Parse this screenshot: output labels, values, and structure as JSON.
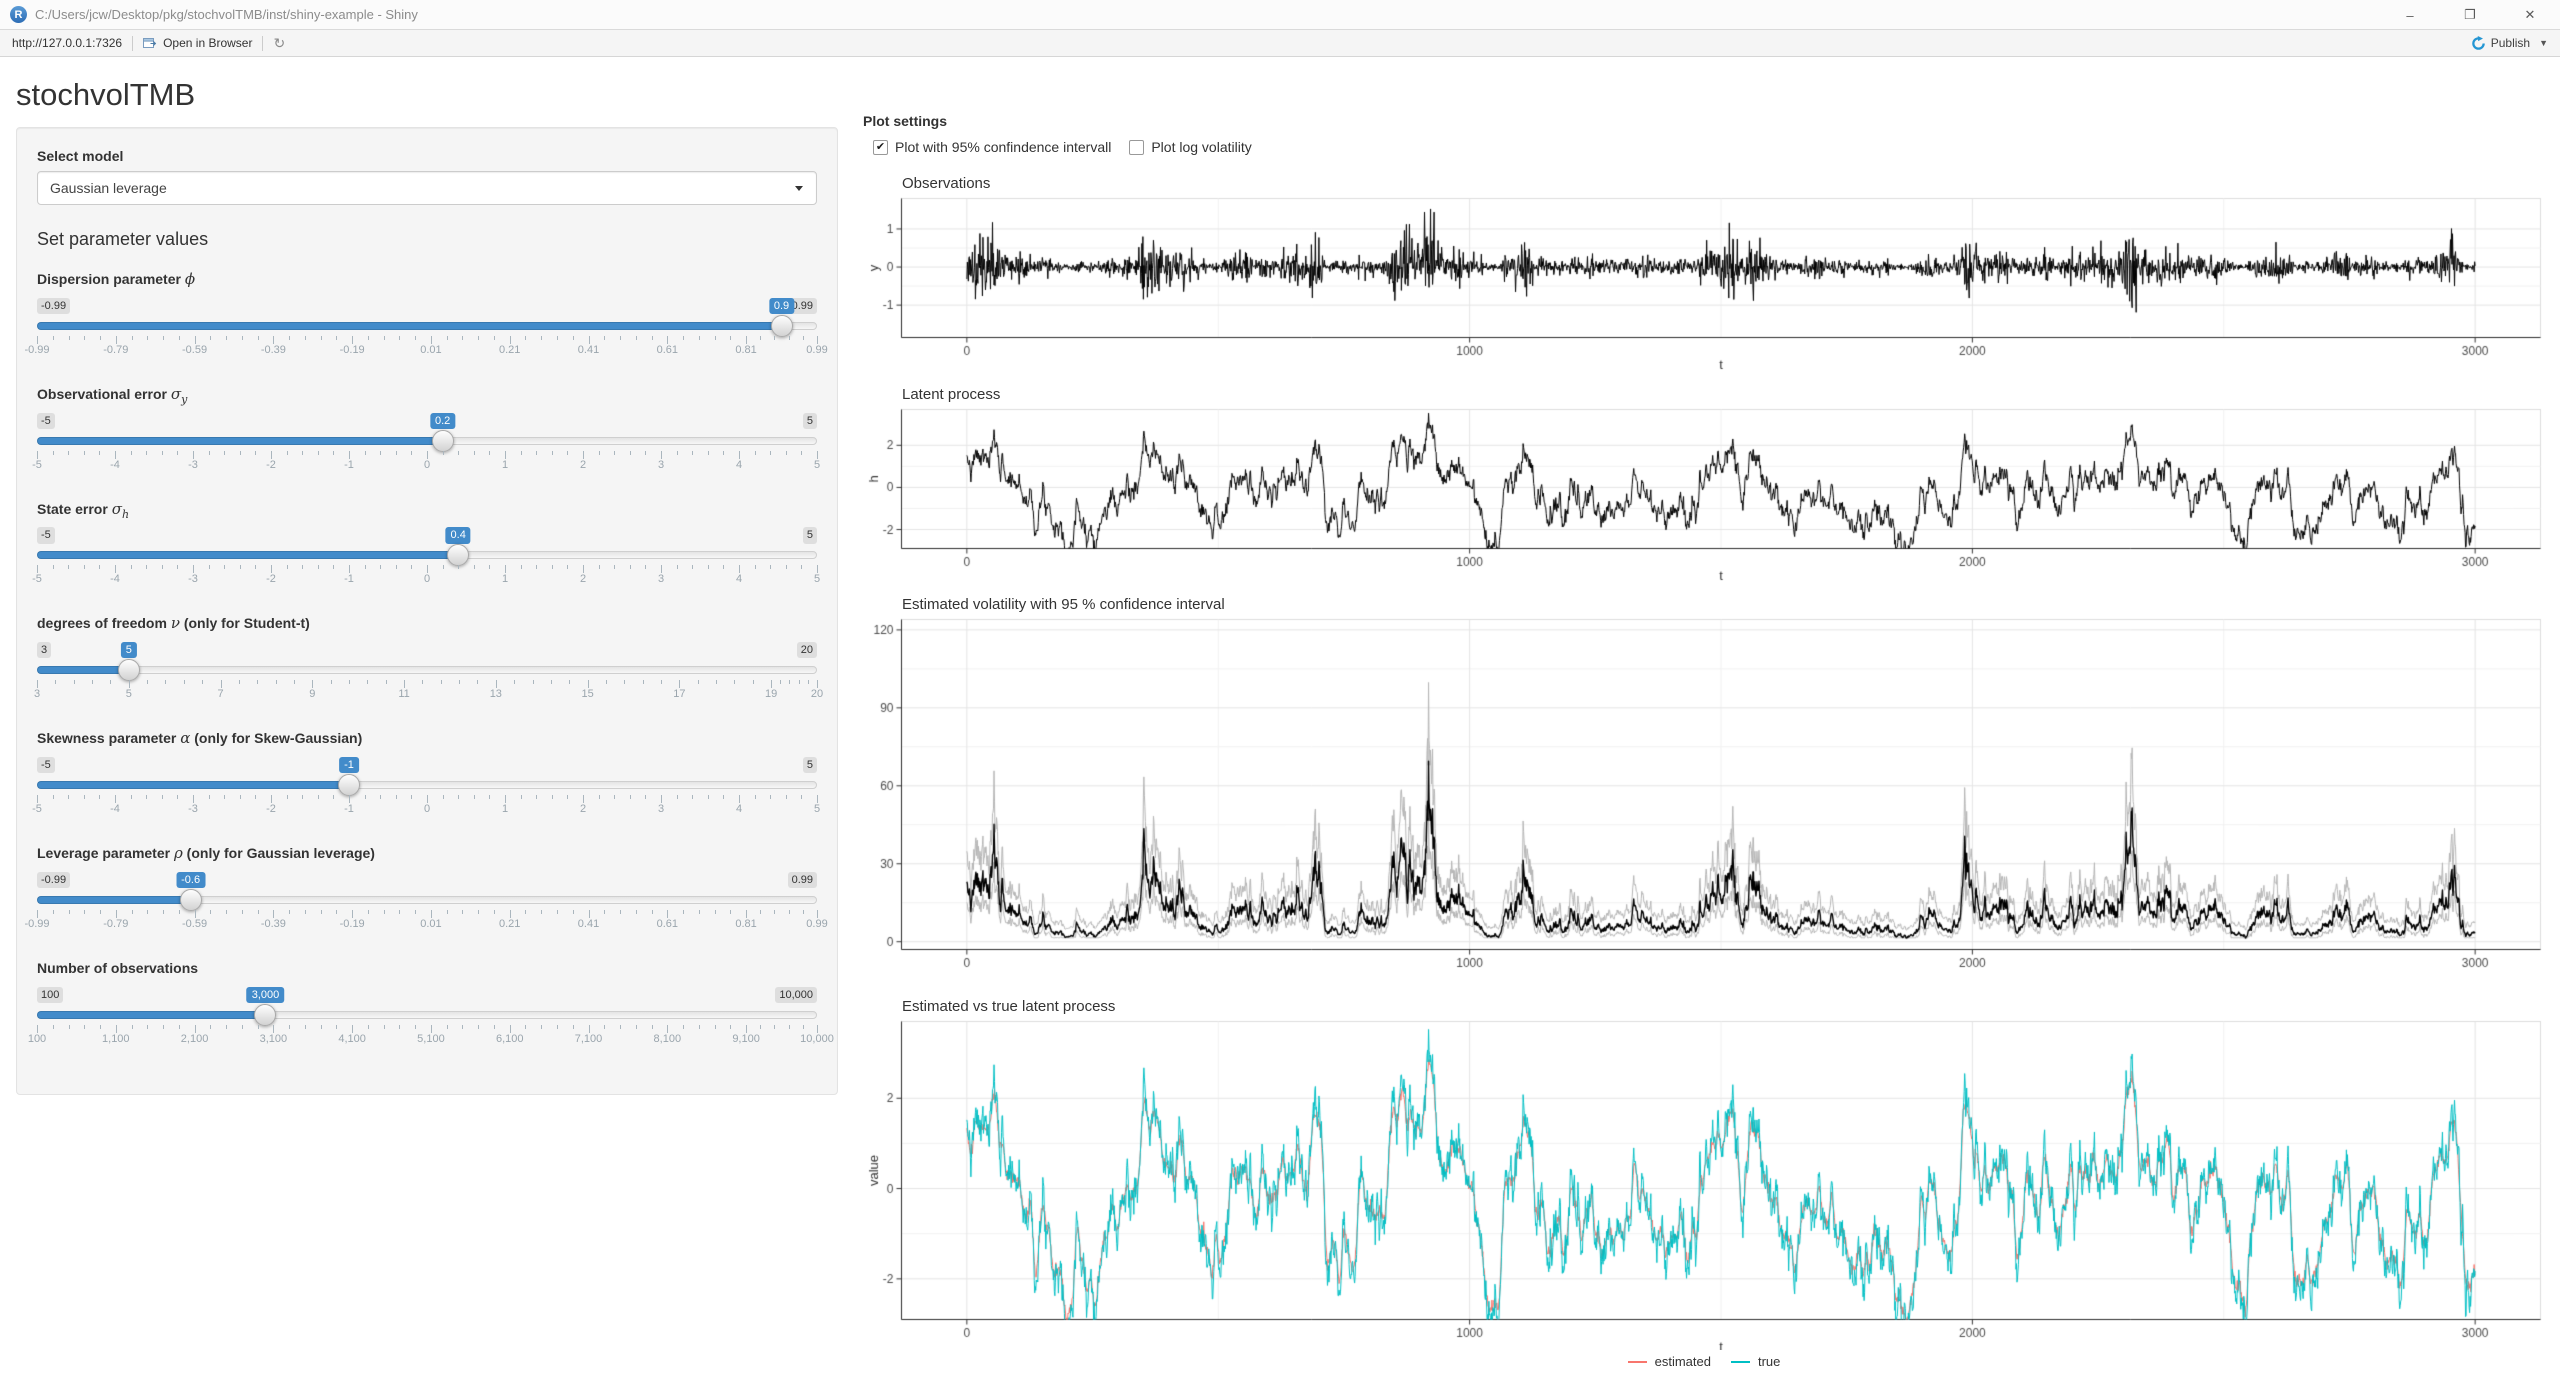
{
  "window": {
    "title": "C:/Users/jcw/Desktop/pkg/stochvolTMB/inst/shiny-example - Shiny"
  },
  "toolbar": {
    "url": "http://127.0.0.1:7326",
    "open_in_browser": "Open in Browser",
    "publish_label": "Publish"
  },
  "icons": {
    "r_logo": "R",
    "minimize": "–",
    "maximize_restore": "❐",
    "close": "✕",
    "refresh": "↻",
    "caret_down": "▼",
    "check": "✔"
  },
  "app": {
    "title": "stochvolTMB",
    "model": {
      "label": "Select model",
      "value": "Gaussian leverage"
    },
    "parameters_heading": "Set parameter values",
    "sliders": [
      {
        "id": "dispersion_phi",
        "label_text": "Dispersion parameter ",
        "symbol": "ϕ",
        "symbol_sub": "",
        "label_suffix": "",
        "min": -0.99,
        "max": 0.99,
        "value": 0.9,
        "min_label": "-0.99",
        "max_label": "0.99",
        "value_label": "0.9",
        "tick_values": [
          -0.99,
          -0.79,
          -0.59,
          -0.39,
          -0.19,
          0.01,
          0.21,
          0.41,
          0.61,
          0.81,
          0.99
        ],
        "tick_labels": [
          "-0.99",
          "-0.79",
          "-0.59",
          "-0.39",
          "-0.19",
          "0.01",
          "0.21",
          "0.41",
          "0.61",
          "0.81",
          "0.99"
        ]
      },
      {
        "id": "obs_error_sigma_y",
        "label_text": "Observational error ",
        "symbol": "σ",
        "symbol_sub": "y",
        "label_suffix": "",
        "min": -5,
        "max": 5,
        "value": 0.2,
        "min_label": "-5",
        "max_label": "5",
        "value_label": "0.2",
        "tick_values": [
          -5,
          -4,
          -3,
          -2,
          -1,
          0,
          1,
          2,
          3,
          4,
          5
        ],
        "tick_labels": [
          "-5",
          "-4",
          "-3",
          "-2",
          "-1",
          "0",
          "1",
          "2",
          "3",
          "4",
          "5"
        ]
      },
      {
        "id": "state_error_sigma_h",
        "label_text": "State error ",
        "symbol": "σ",
        "symbol_sub": "h",
        "label_suffix": "",
        "min": -5,
        "max": 5,
        "value": 0.4,
        "min_label": "-5",
        "max_label": "5",
        "value_label": "0.4",
        "tick_values": [
          -5,
          -4,
          -3,
          -2,
          -1,
          0,
          1,
          2,
          3,
          4,
          5
        ],
        "tick_labels": [
          "-5",
          "-4",
          "-3",
          "-2",
          "-1",
          "0",
          "1",
          "2",
          "3",
          "4",
          "5"
        ]
      },
      {
        "id": "df_nu",
        "label_text": "degrees of freedom ",
        "symbol": "ν",
        "symbol_sub": "",
        "label_suffix": " (only for Student-t)",
        "min": 3,
        "max": 20,
        "value": 5,
        "min_label": "3",
        "max_label": "20",
        "value_label": "5",
        "tick_values": [
          3,
          5,
          7,
          9,
          11,
          13,
          15,
          17,
          19,
          20
        ],
        "tick_labels": [
          "3",
          "5",
          "7",
          "9",
          "11",
          "13",
          "15",
          "17",
          "19",
          "20"
        ]
      },
      {
        "id": "skewness_alpha",
        "label_text": "Skewness parameter ",
        "symbol": "α",
        "symbol_sub": "",
        "label_suffix": " (only for Skew-Gaussian)",
        "min": -5,
        "max": 5,
        "value": -1,
        "min_label": "-5",
        "max_label": "5",
        "value_label": "-1",
        "tick_values": [
          -5,
          -4,
          -3,
          -2,
          -1,
          0,
          1,
          2,
          3,
          4,
          5
        ],
        "tick_labels": [
          "-5",
          "-4",
          "-3",
          "-2",
          "-1",
          "0",
          "1",
          "2",
          "3",
          "4",
          "5"
        ]
      },
      {
        "id": "leverage_rho",
        "label_text": "Leverage parameter ",
        "symbol": "ρ",
        "symbol_sub": "",
        "label_suffix": " (only for Gaussian leverage)",
        "min": -0.99,
        "max": 0.99,
        "value": -0.6,
        "min_label": "-0.99",
        "max_label": "0.99",
        "value_label": "-0.6",
        "tick_values": [
          -0.99,
          -0.79,
          -0.59,
          -0.39,
          -0.19,
          0.01,
          0.21,
          0.41,
          0.61,
          0.81,
          0.99
        ],
        "tick_labels": [
          "-0.99",
          "-0.79",
          "-0.59",
          "-0.39",
          "-0.19",
          "0.01",
          "0.21",
          "0.41",
          "0.61",
          "0.81",
          "0.99"
        ]
      },
      {
        "id": "n_obs",
        "label_text": "Number of observations",
        "symbol": "",
        "symbol_sub": "",
        "label_suffix": "",
        "min": 100,
        "max": 10000,
        "value": 3000,
        "min_label": "100",
        "max_label": "10,000",
        "value_label": "3,000",
        "tick_values": [
          100,
          1100,
          2100,
          3100,
          4100,
          5100,
          6100,
          7100,
          8100,
          9100,
          10000
        ],
        "tick_labels": [
          "100",
          "1,100",
          "2,100",
          "3,100",
          "4,100",
          "5,100",
          "6,100",
          "7,100",
          "8,100",
          "9,100",
          "10,000"
        ]
      }
    ]
  },
  "plot_settings": {
    "heading": "Plot settings",
    "checkboxes": [
      {
        "id": "confidence_interval",
        "label": "Plot with 95% confindence intervall",
        "checked": true
      },
      {
        "id": "log_volatility",
        "label": "Plot log volatility",
        "checked": false
      }
    ]
  },
  "chart_data": [
    {
      "id": "observations",
      "type": "line",
      "title": "Observations",
      "xlabel": "t",
      "ylabel": "y",
      "x_ticks": [
        0,
        1000,
        2000,
        3000
      ],
      "y_ticks": [
        -1,
        0,
        1
      ],
      "xlim": [
        -130,
        3130
      ],
      "ylim": [
        -1.85,
        1.8
      ],
      "n": 3000,
      "seed": 7,
      "grid": true,
      "series": [
        {
          "name": "y",
          "color": "#000000",
          "kind": "observations"
        }
      ]
    },
    {
      "id": "latent_process",
      "type": "line",
      "title": "Latent process",
      "xlabel": "t",
      "ylabel": "h",
      "x_ticks": [
        0,
        1000,
        2000,
        3000
      ],
      "y_ticks": [
        -2,
        0,
        2
      ],
      "xlim": [
        -130,
        3130
      ],
      "ylim": [
        -2.9,
        3.7
      ],
      "n": 3000,
      "seed": 7,
      "grid": true,
      "series": [
        {
          "name": "h",
          "color": "#000000",
          "kind": "latent"
        }
      ]
    },
    {
      "id": "estimated_volatility",
      "type": "line",
      "title": "Estimated volatility with 95 % confidence interval",
      "xlabel": "",
      "ylabel": "",
      "x_ticks": [
        0,
        1000,
        2000,
        3000
      ],
      "y_ticks": [
        0,
        30,
        60,
        90,
        120
      ],
      "xlim": [
        -130,
        3130
      ],
      "ylim": [
        -3,
        124
      ],
      "n": 3000,
      "seed": 7,
      "grid": true,
      "series": [
        {
          "name": "upper 95% CI",
          "color": "#b5b5b5",
          "kind": "ci_upper"
        },
        {
          "name": "lower 95% CI",
          "color": "#b5b5b5",
          "kind": "ci_lower"
        },
        {
          "name": "estimated volatility",
          "color": "#000000",
          "kind": "volatility"
        }
      ]
    },
    {
      "id": "estimated_vs_true",
      "type": "line",
      "title": "Estimated vs true latent process",
      "xlabel": "t",
      "ylabel": "value",
      "x_ticks": [
        0,
        1000,
        2000,
        3000
      ],
      "y_ticks": [
        -2,
        0,
        2
      ],
      "xlim": [
        -130,
        3130
      ],
      "ylim": [
        -2.9,
        3.7
      ],
      "n": 3000,
      "seed": 7,
      "grid": true,
      "legend": {
        "position": "bottom"
      },
      "series": [
        {
          "name": "estimated",
          "color": "#F8766D",
          "kind": "estimated"
        },
        {
          "name": "true",
          "color": "#00BFC4",
          "kind": "latent"
        }
      ]
    }
  ],
  "colors": {
    "accent_blue": "#428bca",
    "slider_badge_bg": "#428bca",
    "well_bg": "#f5f5f5",
    "estimated_line": "#F8766D",
    "true_line": "#00BFC4",
    "publish_blue": "#2496d3",
    "grid_major": "#e4e4e4",
    "grid_minor": "#f1f1f1",
    "axis_line": "#2b2b2b"
  }
}
